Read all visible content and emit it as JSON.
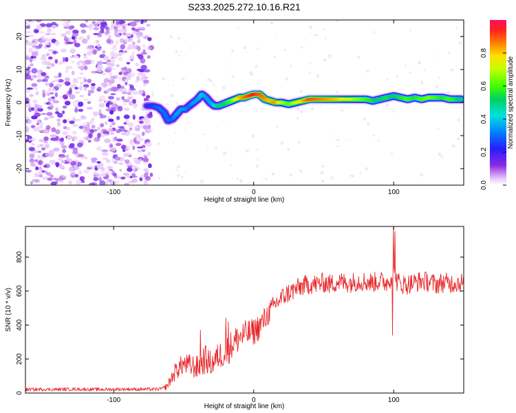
{
  "title": "S233.2025.272.10.16.R21",
  "colors": {
    "signal": "#e8272b",
    "frame": "#000000"
  },
  "chart_data": [
    {
      "type": "heatmap",
      "name": "spectrogram",
      "xlabel": "Height of straight line (km)",
      "ylabel": "Frequency (Hz)",
      "xlim": [
        -163,
        150
      ],
      "ylim": [
        -25,
        25
      ],
      "xticks": [
        -100,
        0,
        100
      ],
      "yticks": [
        -20,
        -10,
        0,
        10,
        20
      ],
      "xtick_labels": [
        "-100",
        "0",
        "100"
      ],
      "ytick_labels": [
        "-20",
        "-10",
        "0",
        "10",
        "20"
      ],
      "colorbar": {
        "label": "Normalized spectral amplitude",
        "range": [
          0,
          1
        ],
        "ticks": [
          0.0,
          0.2,
          0.4,
          0.6,
          0.8
        ],
        "tick_labels": [
          "0.0",
          "0.2",
          "0.4",
          "0.6",
          "0.8"
        ]
      },
      "noise_region_x": [
        -163,
        -73
      ],
      "trace": {
        "x": [
          -76,
          -72,
          -68,
          -64,
          -61,
          -58,
          -55,
          -52,
          -49,
          -46,
          -43,
          -40,
          -37,
          -34,
          -31,
          -28,
          -25,
          -22,
          -19,
          -16,
          -13,
          -10,
          -7,
          -4,
          0,
          4,
          8,
          12,
          16,
          20,
          25,
          30,
          35,
          40,
          50,
          60,
          70,
          80,
          85,
          90,
          95,
          100,
          105,
          110,
          115,
          120,
          125,
          130,
          135,
          140,
          145,
          148
        ],
        "y": [
          -1.0,
          -1.0,
          -1.5,
          -3.0,
          -5.5,
          -5.0,
          -3.5,
          -2.0,
          -2.0,
          -1.0,
          0.0,
          1.0,
          2.5,
          1.5,
          0.0,
          -1.0,
          -1.0,
          -0.5,
          0.0,
          0.5,
          1.0,
          1.5,
          1.5,
          2.0,
          2.5,
          2.5,
          1.0,
          0.5,
          0.0,
          0.0,
          -0.5,
          0.0,
          0.5,
          1.0,
          1.0,
          1.0,
          1.0,
          1.0,
          0.5,
          1.0,
          1.5,
          2.0,
          1.5,
          1.0,
          1.5,
          1.0,
          1.5,
          1.5,
          1.5,
          1.0,
          1.0,
          1.0
        ],
        "amplitude": [
          0.25,
          0.25,
          0.3,
          0.3,
          0.3,
          0.3,
          0.35,
          0.35,
          0.35,
          0.3,
          0.35,
          0.35,
          0.4,
          0.35,
          0.35,
          0.4,
          0.5,
          0.5,
          0.55,
          0.6,
          0.7,
          0.8,
          0.85,
          0.9,
          0.95,
          0.9,
          0.85,
          0.8,
          0.85,
          0.7,
          0.6,
          0.7,
          0.8,
          0.9,
          0.85,
          0.8,
          0.7,
          0.6,
          0.55,
          0.5,
          0.55,
          0.5,
          0.55,
          0.6,
          0.55,
          0.6,
          0.65,
          0.6,
          0.55,
          0.6,
          0.55,
          0.5
        ]
      }
    },
    {
      "type": "line",
      "name": "snr",
      "xlabel": "Height of straight line (km)",
      "ylabel": "SNR (10 * v/v)",
      "xlim": [
        -163,
        150
      ],
      "ylim": [
        0,
        980
      ],
      "xticks": [
        -100,
        0,
        100
      ],
      "yticks": [
        0,
        200,
        400,
        600,
        800
      ],
      "xtick_labels": [
        "-100",
        "0",
        "100"
      ],
      "ytick_labels": [
        "0",
        "200",
        "400",
        "600",
        "800"
      ],
      "series": [
        {
          "name": "SNR",
          "x": [
            -163,
            -150,
            -140,
            -130,
            -120,
            -110,
            -100,
            -90,
            -80,
            -70,
            -65,
            -62,
            -55,
            -50,
            -45,
            -40,
            -35,
            -30,
            -25,
            -20,
            -15,
            -10,
            -5,
            0,
            5,
            10,
            15,
            20,
            25,
            30,
            35,
            40,
            45,
            50,
            55,
            60,
            65,
            70,
            75,
            80,
            85,
            90,
            95,
            98,
            100,
            102,
            105,
            110,
            115,
            120,
            125,
            130,
            135,
            140,
            145,
            150
          ],
          "y": [
            20,
            22,
            21,
            23,
            22,
            21,
            22,
            23,
            22,
            22,
            25,
            40,
            140,
            170,
            160,
            150,
            200,
            170,
            220,
            240,
            290,
            330,
            350,
            360,
            400,
            460,
            520,
            560,
            590,
            610,
            630,
            640,
            640,
            650,
            640,
            655,
            650,
            650,
            660,
            655,
            650,
            660,
            650,
            680,
            700,
            660,
            640,
            640,
            650,
            660,
            655,
            640,
            650,
            645,
            650,
            650
          ],
          "noise_amplitude": [
            10,
            10,
            10,
            10,
            10,
            10,
            10,
            10,
            10,
            10,
            12,
            20,
            60,
            60,
            70,
            70,
            90,
            70,
            80,
            90,
            90,
            90,
            80,
            80,
            80,
            70,
            60,
            60,
            60,
            60,
            60,
            60,
            60,
            60,
            60,
            60,
            60,
            60,
            60,
            60,
            60,
            60,
            60,
            60,
            60,
            60,
            60,
            60,
            60,
            60,
            60,
            60,
            60,
            60,
            60,
            60
          ],
          "spikes": [
            {
              "x": -38,
              "y": 370
            },
            {
              "x": -20,
              "y": 440
            },
            {
              "x": -18,
              "y": 420
            },
            {
              "x": 100,
              "y": 980
            },
            {
              "x": 99,
              "y": 340
            },
            {
              "x": 101,
              "y": 950
            }
          ]
        }
      ]
    }
  ]
}
